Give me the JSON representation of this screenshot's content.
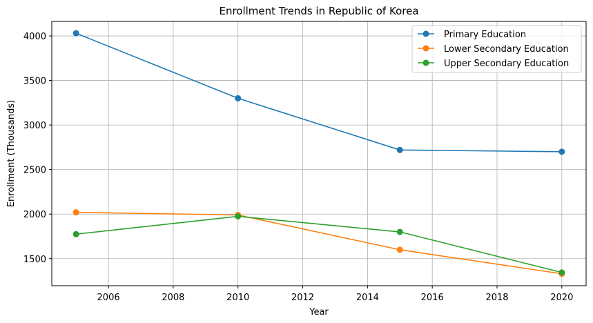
{
  "chart_data": {
    "type": "line",
    "title": "Enrollment Trends in Republic of Korea",
    "xlabel": "Year",
    "ylabel": "Enrollment (Thousands)",
    "x": [
      2005,
      2010,
      2015,
      2020
    ],
    "xlim": [
      2004.25,
      2020.75
    ],
    "ylim": [
      1196,
      4163
    ],
    "xticks": [
      2006,
      2008,
      2010,
      2012,
      2014,
      2016,
      2018,
      2020
    ],
    "yticks": [
      1500,
      2000,
      2500,
      3000,
      3500,
      4000
    ],
    "grid": true,
    "legend_position": "top-right",
    "series": [
      {
        "name": "Primary Education",
        "color": "#1f77b4",
        "values": [
          4030,
          3300,
          2720,
          2700
        ]
      },
      {
        "name": "Lower Secondary Education",
        "color": "#ff7f0e",
        "values": [
          2020,
          1990,
          1600,
          1330
        ]
      },
      {
        "name": "Upper Secondary Education",
        "color": "#2ca02c",
        "values": [
          1775,
          1975,
          1800,
          1345
        ]
      }
    ]
  }
}
